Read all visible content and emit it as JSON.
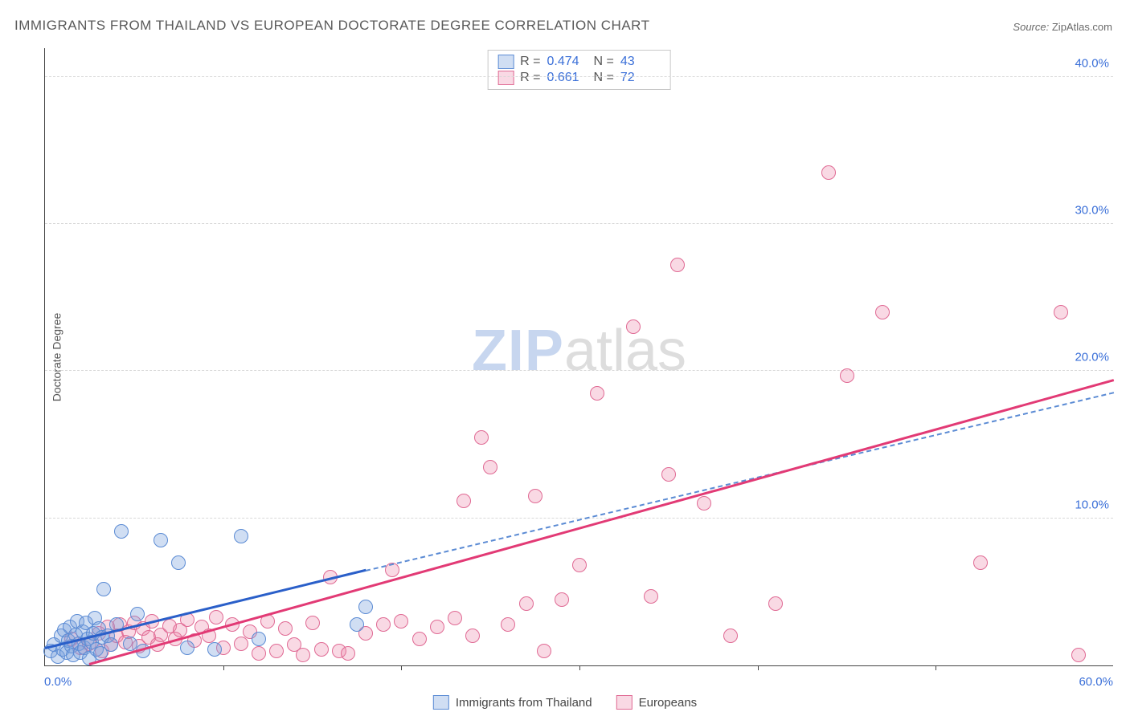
{
  "title": "IMMIGRANTS FROM THAILAND VS EUROPEAN DOCTORATE DEGREE CORRELATION CHART",
  "source_label": "Source:",
  "source_value": "ZipAtlas.com",
  "watermark": {
    "zip": "ZIP",
    "atlas": "atlas"
  },
  "yaxis_title": "Doctorate Degree",
  "chart": {
    "type": "scatter",
    "xlim": [
      0,
      60
    ],
    "ylim": [
      0,
      42
    ],
    "xtick_step": 10,
    "yticks": [
      10,
      20,
      30,
      40
    ],
    "ytick_labels": [
      "10.0%",
      "20.0%",
      "30.0%",
      "40.0%"
    ],
    "xlabel_min": "0.0%",
    "xlabel_max": "60.0%",
    "background_color": "#ffffff",
    "grid_color": "#d8d8d8",
    "axis_color": "#444444",
    "marker_radius": 9,
    "series": [
      {
        "name": "Immigrants from Thailand",
        "fill": "rgba(120,160,220,0.35)",
        "stroke": "#5b8bd4",
        "trend_color": "#2a5fc9",
        "trend_dash_color": "#5b8bd4",
        "R": "0.474",
        "N": "43",
        "trend_solid": {
          "x1": 0,
          "y1": 1.1,
          "x2": 18,
          "y2": 6.4
        },
        "trend_dashed": {
          "x1": 18,
          "y1": 6.4,
          "x2": 60,
          "y2": 18.5
        },
        "points": [
          [
            0.3,
            1.0
          ],
          [
            0.5,
            1.4
          ],
          [
            0.7,
            0.6
          ],
          [
            0.9,
            2.0
          ],
          [
            1.0,
            1.1
          ],
          [
            1.1,
            2.4
          ],
          [
            1.2,
            0.9
          ],
          [
            1.3,
            1.7
          ],
          [
            1.4,
            2.6
          ],
          [
            1.5,
            1.3
          ],
          [
            1.6,
            0.7
          ],
          [
            1.7,
            2.1
          ],
          [
            1.8,
            3.0
          ],
          [
            1.9,
            1.5
          ],
          [
            2.0,
            0.9
          ],
          [
            2.1,
            2.3
          ],
          [
            2.2,
            1.2
          ],
          [
            2.3,
            2.9
          ],
          [
            2.4,
            1.8
          ],
          [
            2.5,
            0.5
          ],
          [
            2.6,
            1.6
          ],
          [
            2.7,
            2.2
          ],
          [
            2.8,
            3.2
          ],
          [
            2.9,
            1.1
          ],
          [
            3.0,
            2.5
          ],
          [
            3.1,
            0.8
          ],
          [
            3.2,
            1.9
          ],
          [
            3.3,
            5.2
          ],
          [
            3.5,
            2.0
          ],
          [
            3.7,
            1.4
          ],
          [
            4.0,
            2.8
          ],
          [
            4.3,
            9.1
          ],
          [
            4.8,
            1.5
          ],
          [
            5.2,
            3.5
          ],
          [
            5.5,
            1.0
          ],
          [
            6.5,
            8.5
          ],
          [
            7.5,
            7.0
          ],
          [
            8.0,
            1.2
          ],
          [
            9.5,
            1.1
          ],
          [
            11.0,
            8.8
          ],
          [
            12.0,
            1.8
          ],
          [
            17.5,
            2.8
          ],
          [
            18.0,
            4.0
          ]
        ]
      },
      {
        "name": "Europeans",
        "fill": "rgba(235,130,165,0.30)",
        "stroke": "#e06a94",
        "trend_color": "#e23a75",
        "trend_dash_color": "#e06a94",
        "R": "0.661",
        "N": "72",
        "trend_solid": {
          "x1": 2.5,
          "y1": 0.0,
          "x2": 60,
          "y2": 19.3
        },
        "points": [
          [
            1.5,
            1.8
          ],
          [
            2.0,
            1.2
          ],
          [
            2.5,
            1.5
          ],
          [
            3.0,
            2.2
          ],
          [
            3.2,
            1.0
          ],
          [
            3.5,
            2.6
          ],
          [
            3.7,
            1.4
          ],
          [
            4.0,
            2.0
          ],
          [
            4.2,
            2.8
          ],
          [
            4.5,
            1.6
          ],
          [
            4.7,
            2.3
          ],
          [
            5.0,
            2.9
          ],
          [
            5.3,
            1.3
          ],
          [
            5.5,
            2.5
          ],
          [
            5.8,
            1.9
          ],
          [
            6.0,
            3.0
          ],
          [
            6.3,
            1.4
          ],
          [
            6.5,
            2.1
          ],
          [
            7.0,
            2.7
          ],
          [
            7.3,
            1.8
          ],
          [
            7.6,
            2.4
          ],
          [
            8.0,
            3.1
          ],
          [
            8.4,
            1.7
          ],
          [
            8.8,
            2.6
          ],
          [
            9.2,
            2.0
          ],
          [
            9.6,
            3.3
          ],
          [
            10.0,
            1.2
          ],
          [
            10.5,
            2.8
          ],
          [
            11.0,
            1.5
          ],
          [
            11.5,
            2.3
          ],
          [
            12.0,
            0.8
          ],
          [
            12.5,
            3.0
          ],
          [
            13.0,
            1.0
          ],
          [
            13.5,
            2.5
          ],
          [
            14.0,
            1.4
          ],
          [
            14.5,
            0.7
          ],
          [
            15.0,
            2.9
          ],
          [
            15.5,
            1.1
          ],
          [
            16.0,
            6.0
          ],
          [
            16.5,
            1.0
          ],
          [
            17.0,
            0.8
          ],
          [
            18.0,
            2.2
          ],
          [
            19.0,
            2.8
          ],
          [
            19.5,
            6.5
          ],
          [
            20.0,
            3.0
          ],
          [
            21.0,
            1.8
          ],
          [
            22.0,
            2.6
          ],
          [
            23.0,
            3.2
          ],
          [
            23.5,
            11.2
          ],
          [
            24.0,
            2.0
          ],
          [
            24.5,
            15.5
          ],
          [
            25.0,
            13.5
          ],
          [
            26.0,
            2.8
          ],
          [
            27.0,
            4.2
          ],
          [
            27.5,
            11.5
          ],
          [
            28.0,
            1.0
          ],
          [
            29.0,
            4.5
          ],
          [
            30.0,
            6.8
          ],
          [
            31.0,
            18.5
          ],
          [
            33.0,
            23.0
          ],
          [
            34.0,
            4.7
          ],
          [
            35.0,
            13.0
          ],
          [
            35.5,
            27.2
          ],
          [
            37.0,
            11.0
          ],
          [
            38.5,
            2.0
          ],
          [
            41.0,
            4.2
          ],
          [
            44.0,
            33.5
          ],
          [
            45.0,
            19.7
          ],
          [
            47.0,
            24.0
          ],
          [
            52.5,
            7.0
          ],
          [
            57.0,
            24.0
          ],
          [
            58.0,
            0.7
          ]
        ]
      }
    ]
  },
  "bottom_legend": [
    "Immigrants from Thailand",
    "Europeans"
  ]
}
